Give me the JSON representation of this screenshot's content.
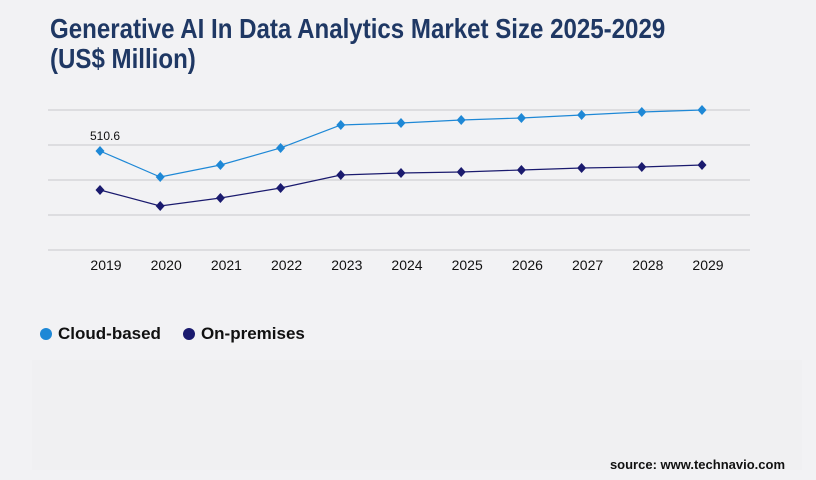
{
  "chart_data": {
    "type": "line",
    "title": "Generative AI In Data Analytics Market Size 2025-2029",
    "title_line2": "(US$ Million)",
    "categories": [
      "2019",
      "2020",
      "2021",
      "2022",
      "2023",
      "2024",
      "2025",
      "2026",
      "2027",
      "2028",
      "2029"
    ],
    "series": [
      {
        "name": "Cloud-based",
        "color": "#1e88d6",
        "values": [
          510.6,
          376.5,
          438.4,
          526.1,
          644.7,
          655.0,
          670.5,
          680.8,
          696.3,
          711.8,
          722.1
        ]
      },
      {
        "name": "On-premises",
        "color": "#1a1a6e",
        "values": [
          309.5,
          227.0,
          268.2,
          319.8,
          386.9,
          397.2,
          402.3,
          412.6,
          423.0,
          428.1,
          438.4
        ]
      }
    ],
    "annotations": [
      {
        "series": "Cloud-based",
        "category": "2019",
        "text": "510.6"
      }
    ],
    "ylim": [
      0,
      722
    ],
    "grid": true,
    "y_tick_labels_shown": false,
    "legend_position": "bottom-left",
    "gridline_color": "#c8c8cc"
  },
  "source": "source: www.technavio.com"
}
